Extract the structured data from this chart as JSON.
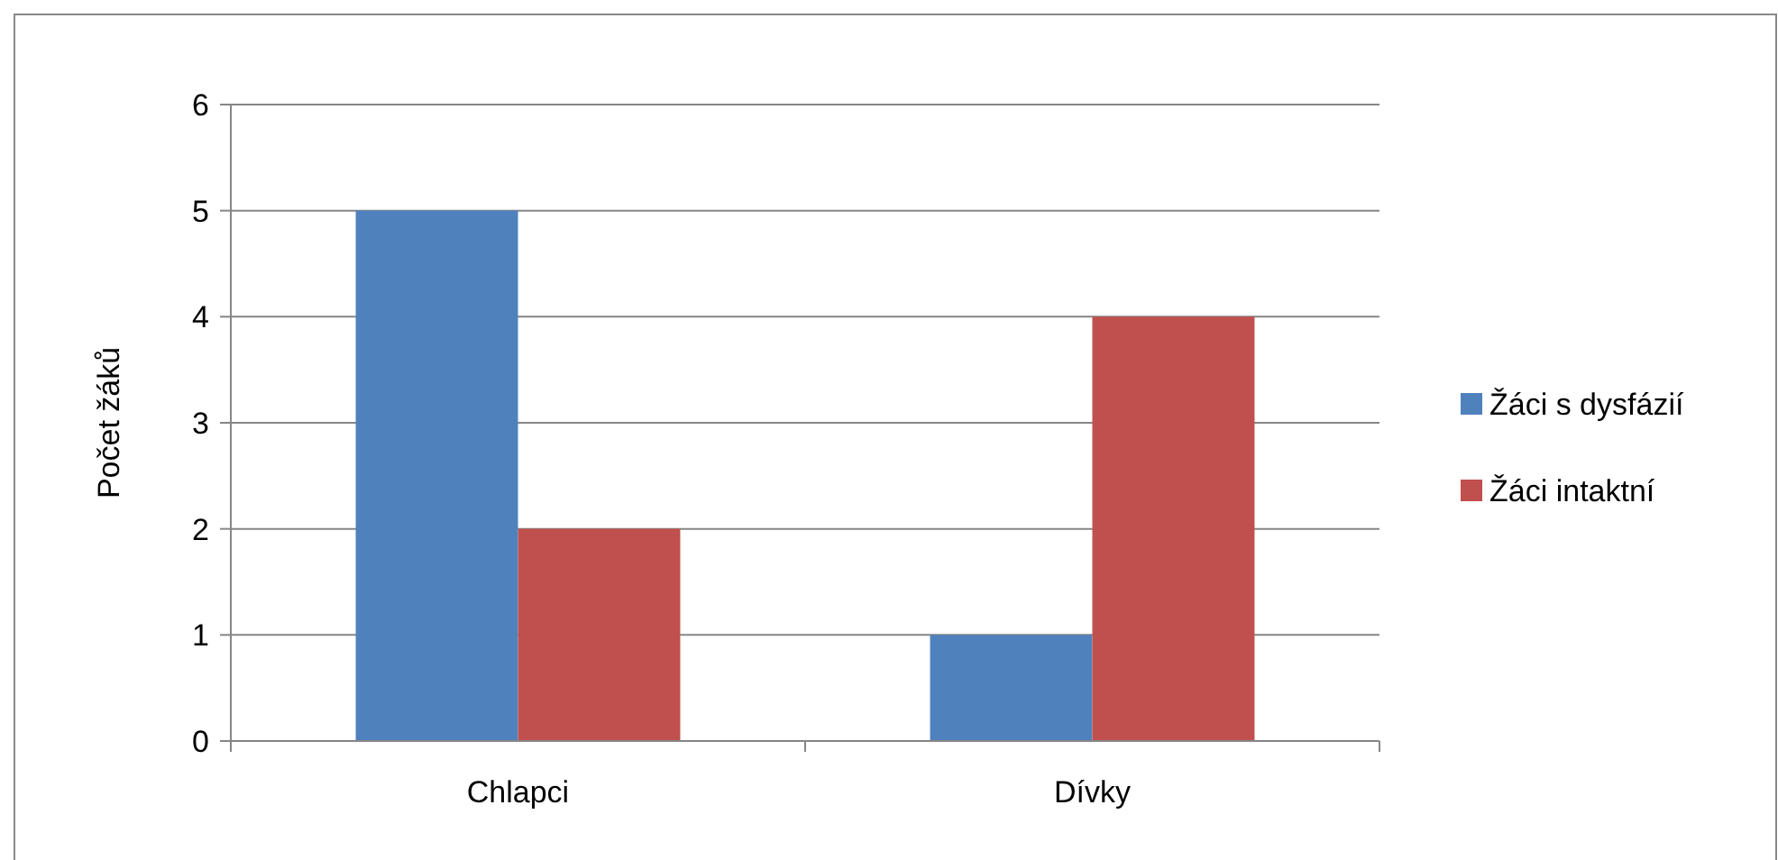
{
  "chart_data": {
    "type": "bar",
    "ylabel": "Počet žáků",
    "categories": [
      "Chlapci",
      "Dívky"
    ],
    "series": [
      {
        "name": "Žáci s dysfázií",
        "color": "#4f81bd",
        "values": [
          5,
          1
        ]
      },
      {
        "name": "Žáci intaktní",
        "color": "#c0504d",
        "values": [
          2,
          4
        ]
      }
    ],
    "ylim": [
      0,
      6
    ],
    "yticks": [
      0,
      1,
      2,
      3,
      4,
      5,
      6
    ],
    "grid": "y",
    "legend": "right"
  }
}
